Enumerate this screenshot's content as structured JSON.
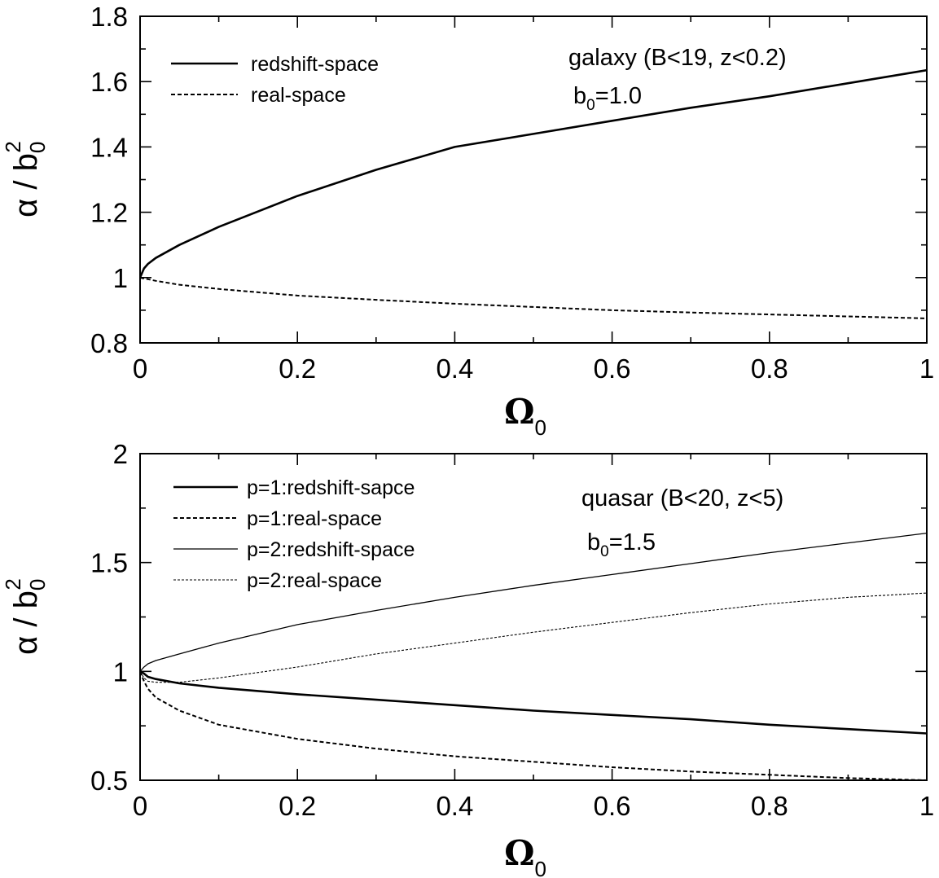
{
  "chart_data": [
    {
      "type": "line",
      "xlabel": {
        "symbol": "Ω",
        "sub": "0"
      },
      "ylabel": {
        "pre": "α / b",
        "sub": "0",
        "sup": "2"
      },
      "xlim": [
        0,
        1
      ],
      "ylim": [
        0.8,
        1.8
      ],
      "x_ticks": [
        0,
        0.2,
        0.4,
        0.6,
        0.8,
        1
      ],
      "x_tick_labels": [
        "0",
        "0.2",
        "0.4",
        "0.6",
        "0.8",
        "1"
      ],
      "y_ticks": [
        0.8,
        1.0,
        1.2,
        1.4,
        1.6,
        1.8
      ],
      "y_tick_labels": [
        "0.8",
        "1",
        "1.2",
        "1.4",
        "1.6",
        "1.8"
      ],
      "annotation": {
        "line1": "galaxy (B<19, z<0.2)",
        "line2_pre": "b",
        "line2_sub": "0",
        "line2_post": "=1.0"
      },
      "legend_position": "top-left",
      "series": [
        {
          "name": "redshift-space",
          "style": "solid-thick",
          "x": [
            0,
            0.005,
            0.01,
            0.02,
            0.05,
            0.1,
            0.2,
            0.3,
            0.4,
            0.5,
            0.6,
            0.7,
            0.8,
            0.9,
            1.0
          ],
          "y": [
            1.0,
            1.028,
            1.042,
            1.06,
            1.1,
            1.155,
            1.25,
            1.33,
            1.4,
            1.44,
            1.48,
            1.52,
            1.555,
            1.595,
            1.635
          ]
        },
        {
          "name": "real-space",
          "style": "dashed-thick",
          "x": [
            0,
            0.005,
            0.01,
            0.02,
            0.05,
            0.1,
            0.2,
            0.3,
            0.4,
            0.5,
            0.6,
            0.7,
            0.8,
            0.9,
            1.0
          ],
          "y": [
            1.0,
            0.997,
            0.995,
            0.99,
            0.978,
            0.965,
            0.945,
            0.932,
            0.92,
            0.91,
            0.9,
            0.893,
            0.887,
            0.881,
            0.875
          ]
        }
      ]
    },
    {
      "type": "line",
      "xlabel": {
        "symbol": "Ω",
        "sub": "0"
      },
      "ylabel": {
        "pre": "α / b",
        "sub": "0",
        "sup": "2"
      },
      "xlim": [
        0,
        1
      ],
      "ylim": [
        0.5,
        2.0
      ],
      "x_ticks": [
        0,
        0.2,
        0.4,
        0.6,
        0.8,
        1
      ],
      "x_tick_labels": [
        "0",
        "0.2",
        "0.4",
        "0.6",
        "0.8",
        "1"
      ],
      "y_ticks": [
        0.5,
        1.0,
        1.5,
        2.0
      ],
      "y_tick_labels": [
        "0.5",
        "1",
        "1.5",
        "2"
      ],
      "annotation": {
        "line1": "quasar (B<20, z<5)",
        "line2_pre": "b",
        "line2_sub": "0",
        "line2_post": "=1.5"
      },
      "legend_position": "top-left",
      "series": [
        {
          "name": "p=1:redshift-sapce",
          "style": "solid-thick",
          "x": [
            0,
            0.005,
            0.01,
            0.02,
            0.05,
            0.1,
            0.2,
            0.3,
            0.4,
            0.5,
            0.6,
            0.7,
            0.8,
            0.9,
            1.0
          ],
          "y": [
            1.0,
            0.99,
            0.975,
            0.965,
            0.945,
            0.925,
            0.895,
            0.87,
            0.845,
            0.82,
            0.8,
            0.78,
            0.755,
            0.735,
            0.715
          ]
        },
        {
          "name": "p=1:real-space",
          "style": "dashed-thick",
          "x": [
            0,
            0.005,
            0.01,
            0.02,
            0.05,
            0.1,
            0.2,
            0.3,
            0.4,
            0.5,
            0.6,
            0.7,
            0.8,
            0.9,
            1.0
          ],
          "y": [
            1.0,
            0.955,
            0.92,
            0.88,
            0.82,
            0.755,
            0.69,
            0.645,
            0.61,
            0.585,
            0.56,
            0.54,
            0.525,
            0.51,
            0.5
          ]
        },
        {
          "name": "p=2:redshift-space",
          "style": "solid-thin",
          "x": [
            0,
            0.005,
            0.01,
            0.02,
            0.05,
            0.1,
            0.2,
            0.3,
            0.4,
            0.5,
            0.6,
            0.7,
            0.8,
            0.9,
            1.0
          ],
          "y": [
            1.0,
            1.02,
            1.035,
            1.05,
            1.08,
            1.13,
            1.215,
            1.28,
            1.34,
            1.395,
            1.445,
            1.495,
            1.545,
            1.59,
            1.635
          ]
        },
        {
          "name": "p=2:real-space",
          "style": "dashed-thin",
          "x": [
            0,
            0.005,
            0.01,
            0.02,
            0.05,
            0.1,
            0.2,
            0.3,
            0.4,
            0.5,
            0.6,
            0.7,
            0.8,
            0.9,
            1.0
          ],
          "y": [
            1.0,
            0.97,
            0.955,
            0.95,
            0.95,
            0.97,
            1.02,
            1.08,
            1.13,
            1.18,
            1.225,
            1.27,
            1.31,
            1.34,
            1.36
          ]
        }
      ]
    }
  ]
}
